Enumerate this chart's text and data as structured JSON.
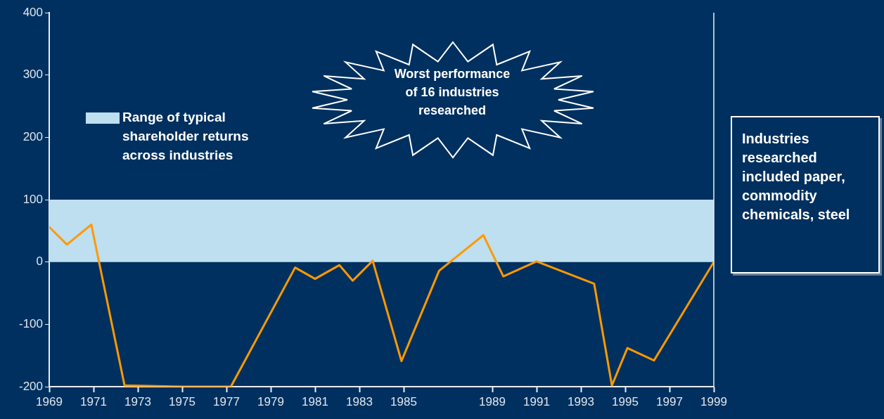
{
  "chart_data": {
    "type": "line",
    "x": [
      1969,
      1969.8,
      1970.9,
      1972.4,
      1975,
      1975.4,
      1976.6,
      1977.2,
      1980.1,
      1981,
      1982.1,
      1982.7,
      1983.6,
      1984.9,
      1986.6,
      1988.6,
      1989.5,
      1991,
      1993.6,
      1994.4,
      1995.1,
      1996.3,
      1999
    ],
    "series": [
      {
        "color": "#ff9900",
        "values": [
          56,
          28,
          60,
          -198,
          -200,
          -200,
          -200,
          -200,
          -9,
          -27,
          -5,
          -30,
          2,
          -159,
          -14,
          43,
          -23,
          1,
          -35,
          -198,
          -138,
          -158,
          0
        ]
      }
    ],
    "xlim": [
      1969,
      1999
    ],
    "xticks": [
      1969,
      1971,
      1973,
      1975,
      1977,
      1979,
      1981,
      1983,
      1985,
      1989,
      1991,
      1993,
      1995,
      1997,
      1999
    ],
    "ylim": [
      -200,
      400
    ],
    "yticks": [
      -200,
      -100,
      0,
      100,
      200,
      300,
      400
    ],
    "grid": false,
    "legend": "top left",
    "marker": "none",
    "line_style": "solid",
    "bands": [
      {
        "axis": "y",
        "from": 0,
        "to": 100,
        "label": "Range of typical shareholder returns across industries",
        "color": "#bddff0"
      }
    ],
    "annotations": [
      "Worst performance of 16 industries researched",
      "Industries researched included paper, commodity chemicals, steel"
    ]
  }
}
